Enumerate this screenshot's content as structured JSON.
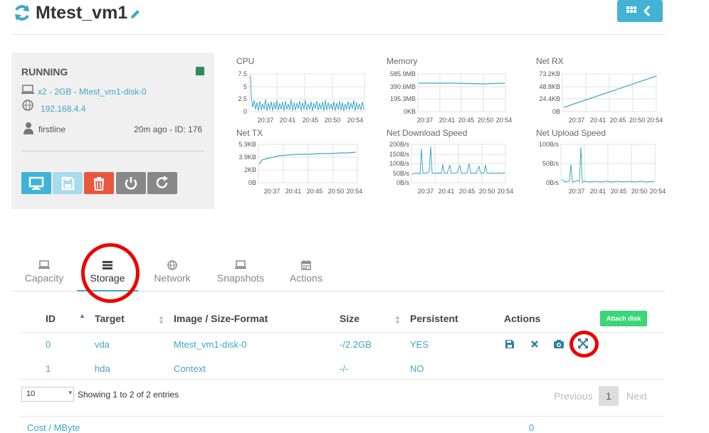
{
  "header": {
    "vm_name": "Mtest_vm1"
  },
  "vm": {
    "state": "RUNNING",
    "state_color": "#2e8b57",
    "config": "x2 - 2GB - Mtest_vm1-disk-0",
    "ip": "192.168.4.4",
    "owner": "firstline",
    "info": "20m ago - ID: 176"
  },
  "colors": {
    "accent": "#3fa7c6",
    "danger": "#e9573f",
    "success": "#3dd47a",
    "power": "#888888"
  },
  "charts": {
    "cpu": {
      "title": "CPU",
      "yticks": [
        "7.5",
        "5",
        "2.5",
        "0"
      ],
      "xticks": [
        "20:37",
        "20:41",
        "20:45",
        "20:50",
        "20:54"
      ]
    },
    "memory": {
      "title": "Memory",
      "yticks": [
        "585.9MB",
        "390.6MB",
        "195.3MB",
        "0KB"
      ],
      "xticks": [
        "20:37",
        "20:41",
        "20:45",
        "20:50",
        "20:54"
      ]
    },
    "netrx": {
      "title": "Net RX",
      "yticks": [
        "73.2KB",
        "48.8KB",
        "24.4KB",
        "0B"
      ],
      "xticks": [
        "20:37",
        "20:41",
        "20:45",
        "20:50",
        "20:54"
      ]
    },
    "nettx": {
      "title": "Net TX",
      "yticks": [
        "5.9KB",
        "3.9KB",
        "2KB",
        "0B"
      ],
      "xticks": [
        "20:37",
        "20:41",
        "20:45",
        "20:50",
        "20:54"
      ]
    },
    "netdl": {
      "title": "Net Download Speed",
      "yticks": [
        "200B/s",
        "150B/s",
        "100B/s",
        "50B/s",
        "0B/s"
      ],
      "xticks": [
        "20:37",
        "20:41",
        "20:45",
        "20:50",
        "20:54"
      ]
    },
    "netul": {
      "title": "Net Upload Speed",
      "yticks": [
        "100B/s",
        "50B/s",
        "0B/s"
      ],
      "xticks": [
        "20:37",
        "20:41",
        "20:45",
        "20:50",
        "20:54"
      ]
    }
  },
  "tabs": [
    {
      "label": "Capacity"
    },
    {
      "label": "Storage",
      "active": true
    },
    {
      "label": "Network"
    },
    {
      "label": "Snapshots"
    },
    {
      "label": "Actions"
    }
  ],
  "table": {
    "headers": {
      "id": "ID",
      "target": "Target",
      "image": "Image / Size-Format",
      "size": "Size",
      "persistent": "Persistent",
      "actions": "Actions"
    },
    "attach_label": "Attach disk",
    "rows": [
      {
        "id": "0",
        "target": "vda",
        "image": "Mtest_vm1-disk-0",
        "size": "-/2.2GB",
        "persistent": "YES"
      },
      {
        "id": "1",
        "target": "hda",
        "image": "Context",
        "size": "-/-",
        "persistent": "NO"
      }
    ],
    "per_page": "10",
    "showing": "Showing 1 to 2 of 2 entries",
    "pagination": {
      "previous": "Previous",
      "page": "1",
      "next": "Next"
    }
  },
  "footer": {
    "cost_label": "Cost / MByte",
    "cost_value": "0"
  }
}
